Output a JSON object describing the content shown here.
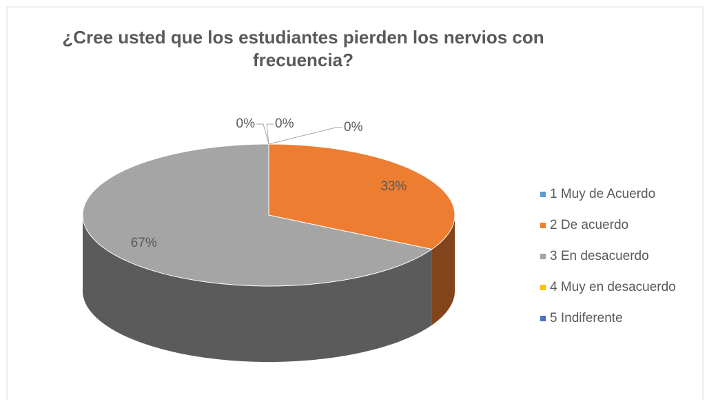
{
  "chart_data": {
    "type": "pie",
    "title": "¿Cree usted que los estudiantes pierden los nervios con frecuencia?",
    "categories": [
      "1 Muy de Acuerdo",
      "2 De acuerdo",
      "3 En desacuerdo",
      "4 Muy en desacuerdo",
      "5 Indiferente"
    ],
    "values": [
      0,
      33,
      67,
      0,
      0
    ],
    "value_labels": [
      "0%",
      "33%",
      "67%",
      "0%",
      "0%"
    ],
    "colors": [
      "#5b9bd5",
      "#ed7d31",
      "#a5a5a5",
      "#ffc000",
      "#4472c4"
    ],
    "legend": "right"
  }
}
